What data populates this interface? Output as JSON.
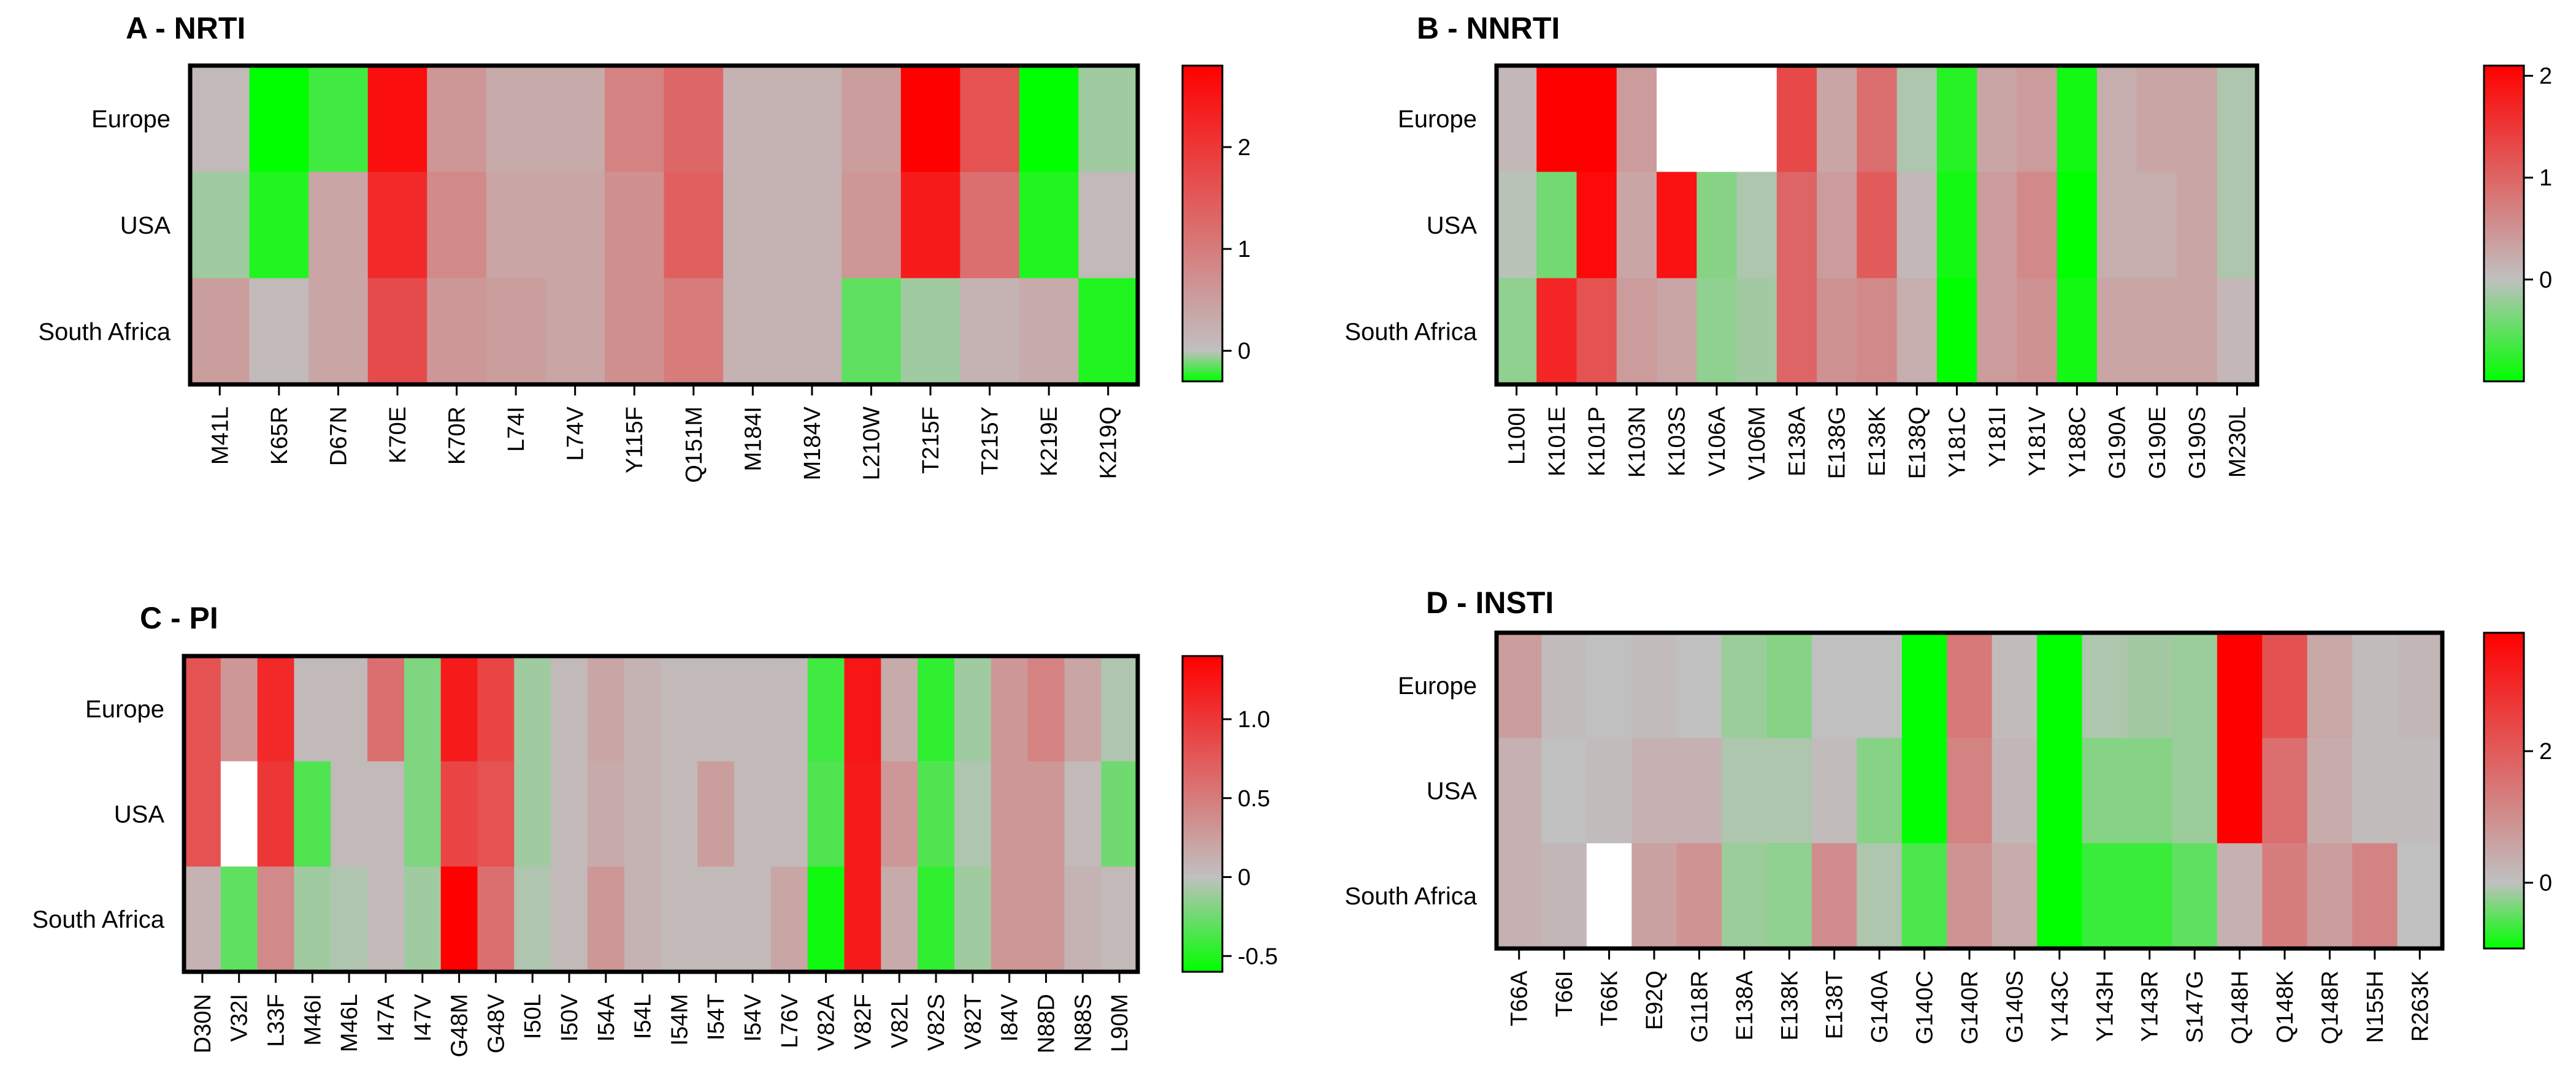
{
  "colors": {
    "high": "#ff0000",
    "neutral": "#c0c0c0",
    "low": "#00ff00",
    "missing": "#ffffff",
    "frame": "#000000"
  },
  "chart_data": [
    {
      "type": "heatmap",
      "title": "A - NRTI",
      "rows": [
        "Europe",
        "USA",
        "South Africa"
      ],
      "columns": [
        "M41L",
        "K65R",
        "D67N",
        "K70E",
        "K70R",
        "L74I",
        "L74V",
        "Y115F",
        "Q151M",
        "M184I",
        "M184V",
        "L210W",
        "T215F",
        "T215Y",
        "K219E",
        "K219Q"
      ],
      "values": [
        [
          0.1,
          -0.3,
          -0.2,
          2.6,
          0.6,
          0.3,
          0.3,
          0.9,
          1.3,
          0.2,
          0.2,
          0.5,
          2.8,
          1.6,
          -0.3,
          -0.05
        ],
        [
          -0.05,
          -0.25,
          0.4,
          2.2,
          0.8,
          0.4,
          0.4,
          0.7,
          1.4,
          0.2,
          0.2,
          0.6,
          2.4,
          1.2,
          -0.25,
          0.1
        ],
        [
          0.5,
          0.1,
          0.4,
          1.7,
          0.6,
          0.5,
          0.4,
          0.7,
          1.0,
          0.2,
          0.2,
          -0.15,
          -0.05,
          0.2,
          0.3,
          -0.25
        ]
      ],
      "colorbar": {
        "min": -0.3,
        "max": 2.8,
        "ticks": [
          0,
          1,
          2
        ],
        "tick_labels": [
          "0",
          "1",
          "2"
        ]
      }
    },
    {
      "type": "heatmap",
      "title": "B - NNRTI",
      "rows": [
        "Europe",
        "USA",
        "South Africa"
      ],
      "columns": [
        "L100I",
        "K101E",
        "K101P",
        "K103N",
        "K103S",
        "V106A",
        "V106M",
        "E138A",
        "E138G",
        "E138K",
        "E138Q",
        "Y181C",
        "Y181I",
        "Y181V",
        "Y188C",
        "G190A",
        "G190E",
        "G190S",
        "M230L"
      ],
      "values": [
        [
          0.1,
          2.1,
          2.1,
          0.4,
          null,
          null,
          null,
          1.3,
          0.3,
          0.9,
          -0.1,
          -0.8,
          0.3,
          0.4,
          -0.9,
          0.2,
          0.3,
          0.3,
          -0.1
        ],
        [
          -0.05,
          -0.4,
          2.0,
          0.3,
          1.9,
          -0.3,
          -0.1,
          1.0,
          0.4,
          1.1,
          0.1,
          -0.9,
          0.4,
          0.6,
          -1.0,
          0.2,
          0.2,
          0.3,
          -0.1
        ],
        [
          -0.25,
          1.7,
          1.2,
          0.4,
          0.3,
          -0.25,
          -0.15,
          1.0,
          0.5,
          0.6,
          0.2,
          -1.0,
          0.4,
          0.5,
          -0.9,
          0.3,
          0.3,
          0.3,
          0.1
        ]
      ],
      "colorbar": {
        "min": -1.0,
        "max": 2.1,
        "ticks": [
          0,
          1,
          2
        ],
        "tick_labels": [
          "0",
          "1",
          "2"
        ]
      }
    },
    {
      "type": "heatmap",
      "title": "C - PI",
      "rows": [
        "Europe",
        "USA",
        "South Africa"
      ],
      "columns": [
        "D30N",
        "V32I",
        "L33F",
        "M46I",
        "M46L",
        "I47A",
        "I47V",
        "G48M",
        "G48V",
        "I50L",
        "I50V",
        "I54A",
        "I54L",
        "I54M",
        "I54T",
        "I54V",
        "L76V",
        "V82A",
        "V82F",
        "V82L",
        "V82S",
        "V82T",
        "I84V",
        "N88D",
        "N88S",
        "L90M"
      ],
      "values": [
        [
          0.8,
          0.3,
          1.1,
          0.05,
          0.05,
          0.6,
          -0.2,
          1.2,
          0.9,
          -0.1,
          0.05,
          0.2,
          0.1,
          0.05,
          0.05,
          0.05,
          0.05,
          -0.4,
          1.25,
          0.15,
          -0.45,
          -0.1,
          0.3,
          0.45,
          0.2,
          -0.05
        ],
        [
          0.8,
          null,
          1.0,
          -0.35,
          0.05,
          0.05,
          -0.2,
          0.9,
          0.8,
          -0.1,
          0.05,
          0.15,
          0.1,
          0.05,
          0.25,
          0.05,
          0.05,
          -0.35,
          1.2,
          0.3,
          -0.35,
          -0.05,
          0.3,
          0.3,
          0.05,
          -0.25
        ],
        [
          0.1,
          -0.3,
          0.4,
          -0.1,
          -0.05,
          0.05,
          -0.1,
          1.4,
          0.6,
          -0.05,
          0.05,
          0.3,
          0.1,
          0.05,
          0.05,
          0.05,
          0.2,
          -0.55,
          1.2,
          0.15,
          -0.45,
          -0.1,
          0.3,
          0.3,
          0.1,
          0.05
        ]
      ],
      "colorbar": {
        "min": -0.6,
        "max": 1.4,
        "ticks": [
          -0.5,
          0,
          0.5,
          1.0
        ],
        "tick_labels": [
          "-0.5",
          "0",
          "0.5",
          "1.0"
        ]
      }
    },
    {
      "type": "heatmap",
      "title": "D - INSTI",
      "rows": [
        "Europe",
        "USA",
        "South Africa"
      ],
      "columns": [
        "T66A",
        "T66I",
        "T66K",
        "E92Q",
        "G118R",
        "E138A",
        "E138K",
        "E138T",
        "G140A",
        "G140C",
        "G140R",
        "G140S",
        "Y143C",
        "Y143H",
        "Y143R",
        "S147G",
        "Q148H",
        "Q148K",
        "Q148R",
        "N155H",
        "R263K"
      ],
      "values": [
        [
          0.7,
          0.1,
          0.0,
          0.1,
          0.0,
          -0.2,
          -0.3,
          0.0,
          0.0,
          -1.0,
          1.4,
          0.1,
          -1.0,
          -0.1,
          -0.15,
          -0.2,
          3.8,
          2.2,
          0.5,
          0.1,
          0.2
        ],
        [
          0.3,
          0.0,
          0.1,
          0.3,
          0.3,
          -0.1,
          -0.1,
          0.1,
          -0.3,
          -1.0,
          1.2,
          0.2,
          -1.0,
          -0.3,
          -0.3,
          -0.2,
          3.8,
          1.6,
          0.4,
          0.1,
          0.1
        ],
        [
          0.3,
          0.2,
          null,
          0.6,
          0.9,
          -0.2,
          -0.25,
          1.0,
          -0.1,
          -0.6,
          0.9,
          0.4,
          -1.0,
          -0.7,
          -0.7,
          -0.5,
          0.3,
          1.3,
          0.7,
          1.2,
          0.0
        ]
      ],
      "colorbar": {
        "min": -1.0,
        "max": 3.8,
        "ticks": [
          0,
          2
        ],
        "tick_labels": [
          "0",
          "2"
        ]
      }
    }
  ]
}
